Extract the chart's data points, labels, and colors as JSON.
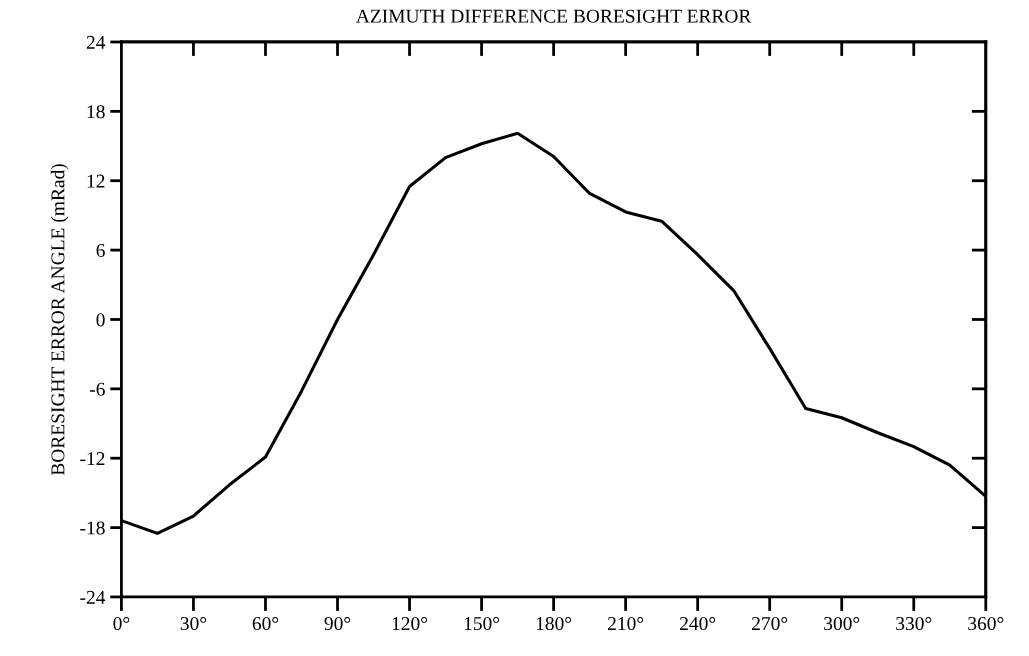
{
  "chart_data": {
    "type": "line",
    "title": "AZIMUTH DIFFERENCE BORESIGHT ERROR",
    "ylabel": "BORESIGHT ERROR ANGLE (mRad)",
    "x": [
      0,
      15,
      30,
      45,
      60,
      75,
      90,
      105,
      120,
      135,
      150,
      165,
      180,
      195,
      210,
      225,
      240,
      255,
      270,
      285,
      300,
      315,
      330,
      345,
      360
    ],
    "series": [
      {
        "color": "#000000",
        "values": [
          -17.4,
          -18.5,
          -17.0,
          -14.3,
          -11.9,
          -6.2,
          0,
          5.6,
          11.5,
          14.0,
          15.2,
          16.1,
          14.1,
          10.9,
          9.3,
          8.5,
          5.6,
          2.5,
          -2.5,
          -7.7,
          -8.5,
          -9.8,
          -11.0,
          -12.6,
          -15.3
        ]
      }
    ],
    "xlim": [
      0,
      360
    ],
    "ylim": [
      -24,
      24
    ],
    "xticks": [
      {
        "value": 0,
        "label": "0°"
      },
      {
        "value": 30,
        "label": "30°"
      },
      {
        "value": 60,
        "label": "60°"
      },
      {
        "value": 90,
        "label": "90°"
      },
      {
        "value": 120,
        "label": "120°"
      },
      {
        "value": 150,
        "label": "150°"
      },
      {
        "value": 180,
        "label": "180°"
      },
      {
        "value": 210,
        "label": "210°"
      },
      {
        "value": 240,
        "label": "240°"
      },
      {
        "value": 270,
        "label": "270°"
      },
      {
        "value": 300,
        "label": "300°"
      },
      {
        "value": 330,
        "label": "330°"
      },
      {
        "value": 360,
        "label": "360°"
      }
    ],
    "yticks": [
      -24,
      -18,
      -12,
      -6,
      0,
      6,
      12,
      18,
      24
    ],
    "grid": false,
    "marker": "none",
    "line_style": "solid"
  }
}
